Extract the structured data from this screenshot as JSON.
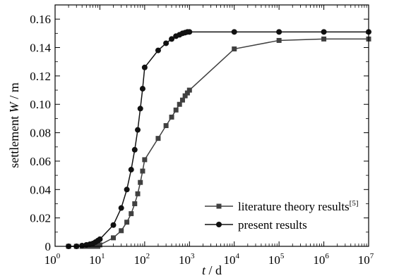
{
  "chart_data": {
    "type": "line",
    "xscale": "log",
    "xlim": [
      1,
      10000000
    ],
    "ylim": [
      0,
      0.17
    ],
    "xlabel": {
      "var": "t",
      "sep": " / ",
      "unit": "d"
    },
    "ylabel": {
      "prefix": "settlement ",
      "var": "W",
      "sep": " / ",
      "unit": "m"
    },
    "x_ticks": [
      {
        "value": 1,
        "base": "10",
        "exp": "0"
      },
      {
        "value": 10,
        "base": "10",
        "exp": "1"
      },
      {
        "value": 100,
        "base": "10",
        "exp": "2"
      },
      {
        "value": 1000,
        "base": "10",
        "exp": "3"
      },
      {
        "value": 10000,
        "base": "10",
        "exp": "4"
      },
      {
        "value": 100000,
        "base": "10",
        "exp": "5"
      },
      {
        "value": 1000000,
        "base": "10",
        "exp": "6"
      },
      {
        "value": 10000000,
        "base": "10",
        "exp": "7"
      }
    ],
    "y_ticks": [
      {
        "value": 0,
        "label": "0"
      },
      {
        "value": 0.02,
        "label": "0.02"
      },
      {
        "value": 0.04,
        "label": "0.04"
      },
      {
        "value": 0.06,
        "label": "0.06"
      },
      {
        "value": 0.08,
        "label": "0.08"
      },
      {
        "value": 0.1,
        "label": "0.10"
      },
      {
        "value": 0.12,
        "label": "0.12"
      },
      {
        "value": 0.14,
        "label": "0.14"
      },
      {
        "value": 0.16,
        "label": "0.16"
      }
    ],
    "legend_position": "bottom-right",
    "series": [
      {
        "name": "literature theory results",
        "name_sup": "[5]",
        "marker": "square",
        "color": "#404040",
        "x": [
          2,
          3,
          4,
          5,
          6,
          7,
          8,
          9,
          10,
          20,
          30,
          40,
          50,
          60,
          70,
          80,
          90,
          100,
          200,
          300,
          400,
          500,
          600,
          700,
          800,
          900,
          1000,
          10000,
          100000,
          1000000,
          10000000
        ],
        "y": [
          0,
          0,
          0,
          0,
          0,
          0,
          0,
          0,
          0.001,
          0.006,
          0.011,
          0.017,
          0.023,
          0.03,
          0.037,
          0.045,
          0.053,
          0.061,
          0.076,
          0.085,
          0.091,
          0.096,
          0.1,
          0.103,
          0.106,
          0.108,
          0.11,
          0.139,
          0.145,
          0.146,
          0.146
        ]
      },
      {
        "name": "present results",
        "marker": "circle",
        "color": "#111111",
        "x": [
          2,
          3,
          4,
          5,
          6,
          7,
          8,
          9,
          10,
          20,
          30,
          40,
          50,
          60,
          70,
          80,
          90,
          100,
          200,
          300,
          400,
          500,
          600,
          700,
          800,
          900,
          1000,
          10000,
          100000,
          1000000,
          10000000
        ],
        "y": [
          0,
          0,
          0.0005,
          0.001,
          0.0015,
          0.002,
          0.003,
          0.004,
          0.005,
          0.015,
          0.027,
          0.04,
          0.054,
          0.068,
          0.082,
          0.097,
          0.111,
          0.126,
          0.138,
          0.143,
          0.146,
          0.148,
          0.149,
          0.15,
          0.1505,
          0.151,
          0.151,
          0.151,
          0.151,
          0.151,
          0.151
        ]
      }
    ]
  }
}
